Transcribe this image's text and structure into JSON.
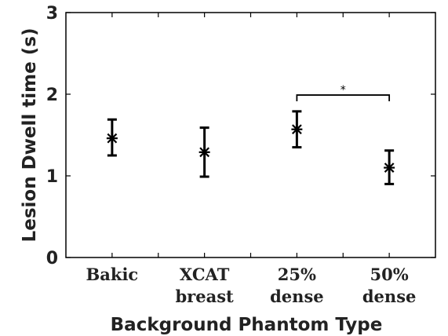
{
  "chart_data": {
    "type": "scatter",
    "title": "",
    "xlabel": "Background Phantom Type",
    "ylabel": "Lesion Dwell time (s)",
    "ylim": [
      0,
      3
    ],
    "yticks": [
      0,
      1,
      2,
      3
    ],
    "xlim": [
      0.5,
      4.5
    ],
    "xticks": [
      1,
      2,
      3,
      4
    ],
    "x_minor_ticks": [
      1.5,
      2.5,
      3.5
    ],
    "grid": false,
    "categories": [
      {
        "lines": [
          "Bakic"
        ]
      },
      {
        "lines": [
          "XCAT",
          "breast"
        ]
      },
      {
        "lines": [
          "25%",
          "dense"
        ]
      },
      {
        "lines": [
          "50%",
          "dense"
        ]
      }
    ],
    "points": [
      {
        "x": 1,
        "mean": 1.46,
        "lower": 1.25,
        "upper": 1.69
      },
      {
        "x": 2,
        "mean": 1.29,
        "lower": 0.99,
        "upper": 1.59
      },
      {
        "x": 3,
        "mean": 1.57,
        "lower": 1.35,
        "upper": 1.79
      },
      {
        "x": 4,
        "mean": 1.1,
        "lower": 0.9,
        "upper": 1.31
      }
    ],
    "significance": [
      {
        "from": 3,
        "to": 4,
        "y": 1.99,
        "label": "*"
      }
    ]
  }
}
